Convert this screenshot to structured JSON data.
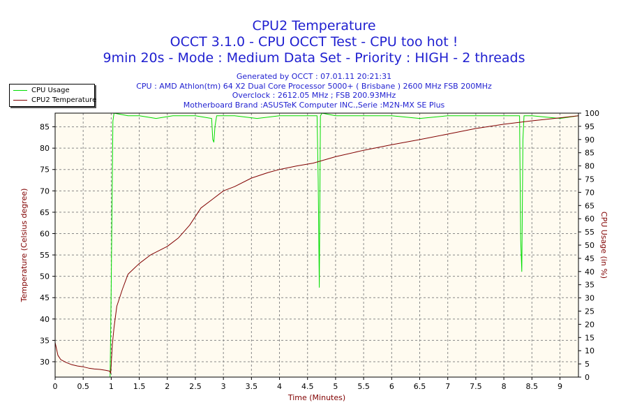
{
  "titles": {
    "line1": "CPU2 Temperature",
    "line2": "OCCT 3.1.0 - CPU OCCT Test - CPU too hot !",
    "line3": "9min 20s - Mode : Medium Data Set - Priority : HIGH - 2 threads"
  },
  "subtitle": {
    "generated": "Generated by OCCT : 07.01.11 20:21:31",
    "cpu": "CPU : AMD Athlon(tm) 64 X2 Dual Core Processor 5000+ ( Brisbane ) 2600 MHz FSB 200MHz",
    "overclock": "Overclock : 2612.05 MHz ; FSB 200.93MHz",
    "motherboard": "Motherboard Brand :ASUSTeK Computer INC.,Serie :M2N-MX SE Plus"
  },
  "legend": [
    {
      "label": "CPU Usage",
      "color": "#00dd00"
    },
    {
      "label": "CPU2 Temperature",
      "color": "#800000"
    }
  ],
  "chart_data": {
    "type": "line",
    "xlabel": "Time (Minutes)",
    "ylabel_left": "Temperature (Celsius degree)",
    "ylabel_right": "CPU Usage (in %)",
    "xlim": [
      0,
      9.33
    ],
    "ylim_left": [
      26.4,
      88.2
    ],
    "ylim_right": [
      0,
      100
    ],
    "x_ticks": [
      "0",
      "0.5",
      "1",
      "1.5",
      "2",
      "2.5",
      "3",
      "3.5",
      "4",
      "4.5",
      "5",
      "5.5",
      "6",
      "6.5",
      "7",
      "7.5",
      "8",
      "8.5",
      "9"
    ],
    "y_left_ticks": [
      "30",
      "35",
      "40",
      "45",
      "50",
      "55",
      "60",
      "65",
      "70",
      "75",
      "80",
      "85"
    ],
    "y_right_ticks": [
      "0",
      "5",
      "10",
      "15",
      "20",
      "25",
      "30",
      "35",
      "40",
      "45",
      "50",
      "55",
      "60",
      "65",
      "70",
      "75",
      "80",
      "85",
      "90",
      "95",
      "100"
    ],
    "grid": true,
    "background": "#fffbf0",
    "series": [
      {
        "name": "CPU Usage",
        "axis": "right",
        "color": "#00dd00",
        "x": [
          0,
          0.98,
          1.0,
          1.03,
          1.05,
          1.3,
          1.5,
          1.8,
          2.1,
          2.5,
          2.79,
          2.81,
          2.83,
          2.85,
          2.88,
          3.2,
          3.6,
          4.0,
          4.4,
          4.67,
          4.69,
          4.71,
          4.73,
          4.76,
          5.0,
          5.5,
          6.0,
          6.5,
          7.0,
          7.5,
          8.0,
          8.28,
          8.3,
          8.32,
          8.34,
          8.36,
          8.5,
          9.0,
          9.33
        ],
        "y": [
          0,
          0,
          35,
          97,
          100,
          99,
          99,
          98,
          99,
          99,
          98,
          90,
          89,
          95,
          99,
          99,
          98,
          99,
          99,
          99,
          75,
          34,
          99,
          100,
          99,
          99,
          99,
          98,
          99,
          99,
          99,
          99,
          52,
          40,
          90,
          99,
          99,
          98,
          99
        ]
      },
      {
        "name": "CPU2 Temperature",
        "axis": "left",
        "color": "#800000",
        "x": [
          0,
          0.05,
          0.1,
          0.2,
          0.3,
          0.4,
          0.5,
          0.6,
          0.7,
          0.8,
          0.9,
          0.97,
          0.99,
          1.0,
          1.02,
          1.05,
          1.1,
          1.2,
          1.3,
          1.5,
          1.7,
          2.0,
          2.2,
          2.4,
          2.6,
          2.8,
          3.0,
          3.2,
          3.5,
          3.8,
          4.0,
          4.3,
          4.6,
          5.0,
          5.5,
          6.0,
          6.5,
          7.0,
          7.5,
          8.0,
          8.5,
          9.0,
          9.33
        ],
        "y": [
          34.5,
          31.5,
          30.5,
          29.8,
          29.3,
          29.0,
          28.8,
          28.5,
          28.3,
          28.2,
          28.0,
          27.8,
          27.3,
          29.5,
          34.0,
          38.0,
          43.0,
          47.0,
          50.5,
          53.0,
          55.0,
          57.0,
          59.0,
          62.0,
          66.0,
          68.0,
          70.0,
          71.0,
          73.0,
          74.3,
          75.0,
          75.8,
          76.5,
          78.0,
          79.5,
          80.8,
          82.0,
          83.3,
          84.6,
          85.6,
          86.4,
          87.1,
          87.6
        ]
      }
    ]
  }
}
